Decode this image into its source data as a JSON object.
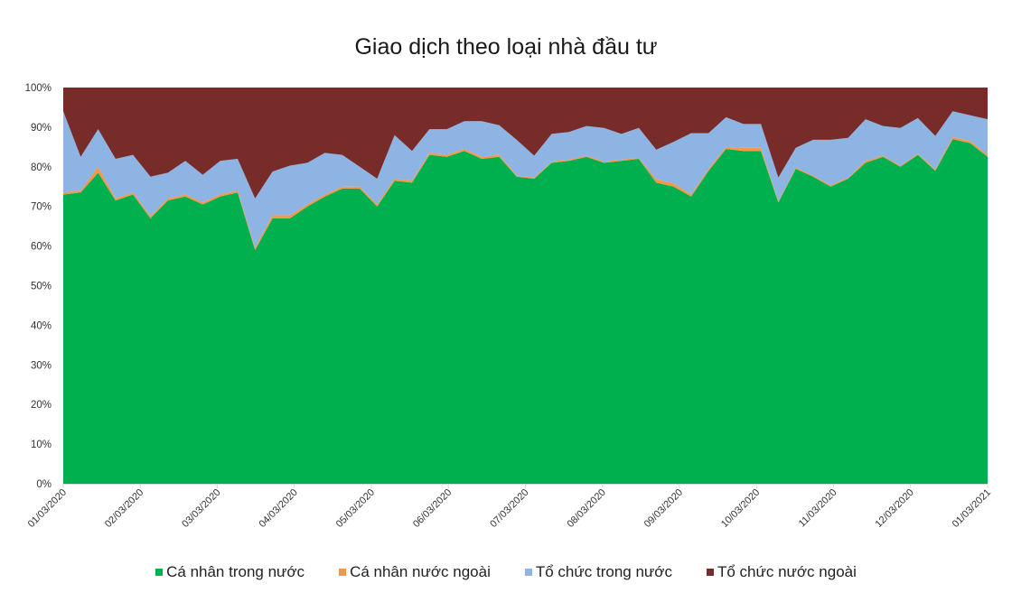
{
  "chart_data": {
    "type": "area",
    "stacked": "percent",
    "title": "Giao dịch theo loại nhà đầu tư",
    "xlabel": "",
    "ylabel": "",
    "ylim": [
      0,
      100
    ],
    "yticks": [
      "0%",
      "10%",
      "20%",
      "30%",
      "40%",
      "50%",
      "60%",
      "70%",
      "80%",
      "90%",
      "100%"
    ],
    "xticks": [
      "01/03/2020",
      "02/03/2020",
      "03/03/2020",
      "04/03/2020",
      "05/03/2020",
      "06/03/2020",
      "07/03/2020",
      "08/03/2020",
      "09/03/2020",
      "10/03/2020",
      "11/03/2020",
      "12/03/2020",
      "01/03/2021"
    ],
    "grid": false,
    "legend_position": "bottom",
    "series": [
      {
        "name": "Cá nhân trong nước",
        "color": "#00b04f",
        "values": [
          73,
          73.5,
          78.5,
          71.5,
          73,
          67,
          71.5,
          72.5,
          70.5,
          72.5,
          73.5,
          59,
          67,
          67,
          70,
          72.5,
          74.5,
          74.5,
          70,
          76.5,
          76,
          83,
          82.5,
          84,
          82,
          82.5,
          77.5,
          77,
          81,
          81.5,
          82.5,
          81,
          81.5,
          82,
          76,
          75,
          72.5,
          79,
          84.5,
          84,
          84,
          71,
          79.5,
          77.5,
          75,
          77,
          81,
          82.5,
          80,
          83,
          79,
          87,
          86,
          82.5
        ]
      },
      {
        "name": "Cá nhân nước ngoài",
        "color": "#f79646",
        "values": [
          0.5,
          0.5,
          1.5,
          0.5,
          0.5,
          0.5,
          0.5,
          0.5,
          0.5,
          0.5,
          0.5,
          0.5,
          0.8,
          0.8,
          0.5,
          0.5,
          0.5,
          0.5,
          0.5,
          0.5,
          0.5,
          0.5,
          0.5,
          0.5,
          0.5,
          0.5,
          0.3,
          0.3,
          0.3,
          0.3,
          0.3,
          0.3,
          0.3,
          0.3,
          0.8,
          0.8,
          0.5,
          0.5,
          0.5,
          0.8,
          0.8,
          0.3,
          0.3,
          0.3,
          0.3,
          0.3,
          0.5,
          0.3,
          0.3,
          0.3,
          0.3,
          0.5,
          0.5,
          0.5
        ]
      },
      {
        "name": "Tổ chức trong nước",
        "color": "#8eb4e3",
        "values": [
          20.5,
          8.5,
          9.5,
          10,
          9.5,
          10,
          6.5,
          8.5,
          7,
          8.5,
          8,
          12.5,
          11,
          12.5,
          10.5,
          10.5,
          8,
          5,
          6.5,
          11,
          7.5,
          6,
          6.5,
          7,
          9,
          7.5,
          9,
          5.5,
          7,
          7,
          7.5,
          8.5,
          6.5,
          7.5,
          7.5,
          10.5,
          15.5,
          9,
          7.5,
          6,
          6,
          6,
          5,
          9,
          11.5,
          10,
          10.5,
          7.5,
          9.5,
          9,
          8.5,
          6.5,
          6.5,
          9
        ]
      },
      {
        "name": "Tổ chức nước ngoài",
        "color": "#772c2a",
        "values": [
          6,
          17.5,
          10.5,
          18,
          17,
          22.5,
          21.5,
          18.5,
          22,
          18.5,
          18,
          28,
          21.2,
          19.7,
          19,
          16.5,
          17,
          20,
          23,
          12,
          16,
          10.5,
          10.5,
          8.5,
          8.5,
          9.5,
          13.2,
          17.2,
          11.7,
          11.2,
          9.7,
          10.2,
          11.7,
          10.2,
          15.7,
          13.7,
          11.5,
          11.5,
          7.5,
          9.2,
          9.2,
          22.7,
          15.2,
          13.2,
          13.2,
          12.7,
          8,
          9.7,
          10.2,
          7.7,
          12.2,
          6,
          7,
          8
        ]
      }
    ]
  },
  "legend": {
    "items": [
      {
        "label": "Cá nhân trong nước",
        "color": "#00b04f"
      },
      {
        "label": "Cá nhân nước ngoài",
        "color": "#f79646"
      },
      {
        "label": "Tổ chức trong nước",
        "color": "#8eb4e3"
      },
      {
        "label": "Tổ chức nước ngoài",
        "color": "#772c2a"
      }
    ]
  }
}
